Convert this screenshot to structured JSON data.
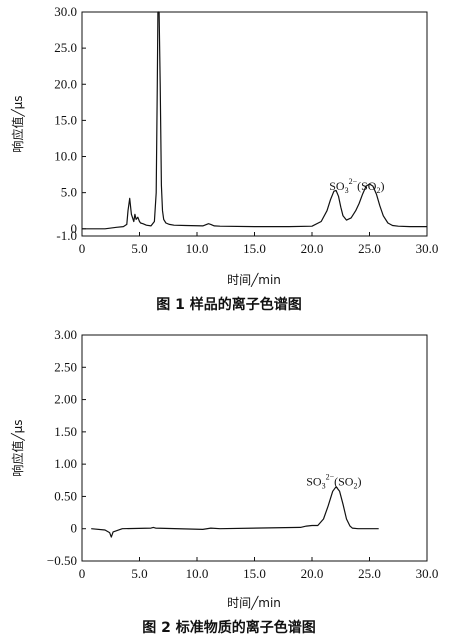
{
  "chart_data": [
    {
      "type": "line",
      "caption": "图 1   样品的离子色谱图",
      "xlabel": "时间╱min",
      "ylabel": "响应值╱μs",
      "xlim": [
        0,
        30
      ],
      "ylim": [
        -1,
        30
      ],
      "xticks": [
        "0",
        "5.0",
        "10.0",
        "15.0",
        "20.0",
        "25.0",
        "30.0"
      ],
      "yticks": [
        "-1.0",
        "0",
        "5.0",
        "10.0",
        "15.0",
        "20.0",
        "25.0",
        "30.0"
      ],
      "annotation": {
        "text_main": "SO",
        "sub1": "3",
        "sup": "2−",
        "paren_open": "(SO",
        "sub2": "2",
        "paren_close": ")",
        "x": 21.5,
        "y": 5.4
      },
      "series": [
        {
          "x": [
            0.0,
            2.0,
            3.0,
            3.6,
            3.9,
            4.0,
            4.15,
            4.3,
            4.5,
            4.6,
            4.7,
            4.85,
            5.0,
            5.1,
            5.3,
            5.6,
            6.0,
            6.3,
            6.45,
            6.55,
            6.6,
            6.7,
            6.8,
            6.9,
            7.0,
            7.1,
            7.3,
            7.6,
            8.0,
            9.0,
            10.5,
            11.0,
            11.2,
            11.5,
            12.0,
            15.0,
            18.0,
            20.0,
            20.8,
            21.3,
            21.6,
            21.9,
            22.1,
            22.3,
            22.5,
            22.7,
            23.0,
            23.4,
            23.8,
            24.1,
            24.4,
            24.7,
            25.0,
            25.3,
            25.6,
            25.9,
            26.2,
            26.6,
            27.0,
            27.5,
            28.5,
            30.0
          ],
          "y": [
            0.0,
            0.0,
            0.2,
            0.3,
            0.6,
            2.5,
            4.2,
            2.0,
            1.0,
            2.0,
            1.3,
            1.6,
            1.0,
            0.8,
            0.7,
            0.5,
            0.4,
            1.0,
            5.0,
            20.0,
            30.0,
            30.0,
            20.0,
            6.0,
            2.5,
            1.3,
            0.8,
            0.6,
            0.5,
            0.45,
            0.4,
            0.7,
            0.6,
            0.4,
            0.35,
            0.3,
            0.3,
            0.35,
            1.0,
            2.5,
            4.0,
            5.2,
            5.3,
            4.5,
            3.0,
            1.8,
            1.2,
            1.5,
            2.5,
            3.5,
            4.8,
            5.9,
            6.2,
            5.9,
            4.8,
            3.2,
            1.8,
            0.8,
            0.45,
            0.35,
            0.3,
            0.3
          ]
        }
      ]
    },
    {
      "type": "line",
      "caption": "图 2   标准物质的离子色谱图",
      "xlabel": "时间╱min",
      "ylabel": "响应值╱μs",
      "xlim": [
        0,
        30
      ],
      "ylim": [
        -0.5,
        3
      ],
      "xticks": [
        "0",
        "5.0",
        "10.0",
        "15.0",
        "20.0",
        "25.0",
        "30.0"
      ],
      "yticks": [
        "−0.50",
        "0",
        "0.50",
        "1.00",
        "1.50",
        "2.00",
        "2.50",
        "3.00"
      ],
      "annotation": {
        "text_main": "SO",
        "sub1": "3",
        "sup": "2−",
        "paren_open": "(SO",
        "sub2": "2",
        "paren_close": ")",
        "x": 19.5,
        "y": 0.67
      },
      "series": [
        {
          "x": [
            0.8,
            2.0,
            2.4,
            2.55,
            2.7,
            3.5,
            6.0,
            6.2,
            6.4,
            10.5,
            11.2,
            12.0,
            19.0,
            19.5,
            20.0,
            20.5,
            21.0,
            21.4,
            21.8,
            22.1,
            22.4,
            22.7,
            23.0,
            23.3,
            23.5,
            24.0,
            25.0,
            25.8
          ],
          "y": [
            0.0,
            -0.02,
            -0.06,
            -0.13,
            -0.05,
            0.0,
            0.01,
            0.02,
            0.01,
            -0.01,
            0.01,
            0.0,
            0.02,
            0.04,
            0.05,
            0.05,
            0.15,
            0.35,
            0.58,
            0.65,
            0.58,
            0.38,
            0.15,
            0.04,
            0.01,
            0.0,
            0.0,
            0.0
          ]
        }
      ]
    }
  ]
}
